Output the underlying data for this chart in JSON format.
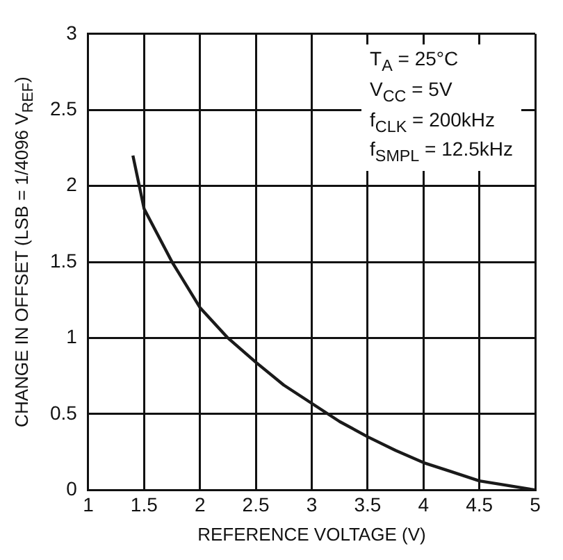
{
  "chart_data": {
    "type": "line",
    "xlabel": "REFERENCE VOLTAGE (V)",
    "ylabel": "CHANGE IN OFFSET (LSB = 1/4096 V$_{REF}$)",
    "annotations": [
      "T$_{A}$ = 25°C",
      "V$_{CC}$ = 5V",
      "f$_{CLK}$ = 200kHz",
      "f$_{SMPL}$ = 12.5kHz"
    ],
    "series": [
      {
        "color": "#1a1a1a",
        "x": [
          1.4,
          1.5,
          1.75,
          2,
          2.25,
          2.5,
          2.75,
          3,
          3.25,
          3.5,
          3.75,
          4,
          4.25,
          4.5,
          4.75,
          5
        ],
        "values": [
          2.2,
          1.85,
          1.5,
          1.2,
          1.0,
          0.84,
          0.69,
          0.57,
          0.45,
          0.35,
          0.26,
          0.18,
          0.12,
          0.06,
          0.03,
          0
        ]
      }
    ],
    "xlim": [
      1,
      5
    ],
    "xticks": [
      1,
      1.5,
      2,
      2.5,
      3,
      3.5,
      4,
      4.5,
      5
    ],
    "ylim": [
      0,
      3
    ],
    "yticks": [
      0,
      0.5,
      1,
      1.5,
      2,
      2.5,
      3
    ],
    "grid": true,
    "legend": false,
    "marker": "none",
    "line_style": "solid"
  }
}
